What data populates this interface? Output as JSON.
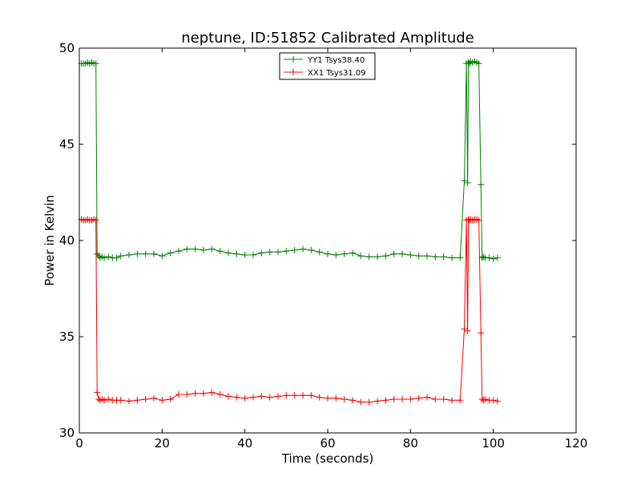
{
  "chart_data": {
    "type": "line",
    "title": "neptune, ID:51852 Calibrated Amplitude",
    "xlabel": "Time (seconds)",
    "ylabel": "Power in Kelvin",
    "xlim": [
      0,
      120
    ],
    "ylim": [
      30,
      50
    ],
    "xticks": [
      0,
      20,
      40,
      60,
      80,
      100,
      120
    ],
    "yticks": [
      30,
      35,
      40,
      45,
      50
    ],
    "grid": false,
    "legend_position": "top-center",
    "series": [
      {
        "name": "YY1 Tsys38.40",
        "color": "#008000",
        "marker": "+",
        "x": [
          0.5,
          1.0,
          1.5,
          2.0,
          2.5,
          3.0,
          3.5,
          4.0,
          4.3,
          4.7,
          5.0,
          5.5,
          6.0,
          7.0,
          8.0,
          9.0,
          10.0,
          12.0,
          14.0,
          16.0,
          18.0,
          20.0,
          22.0,
          24.0,
          26.0,
          28.0,
          30.0,
          32.0,
          34.0,
          36.0,
          38.0,
          40.0,
          42.0,
          44.0,
          46.0,
          48.0,
          50.0,
          52.0,
          54.0,
          56.0,
          58.0,
          60.0,
          62.0,
          64.0,
          66.0,
          68.0,
          70.0,
          72.0,
          74.0,
          76.0,
          78.0,
          80.0,
          82.0,
          84.0,
          86.0,
          88.0,
          90.0,
          92.0,
          93.0,
          93.5,
          93.8,
          94.0,
          94.2,
          94.5,
          95.0,
          95.5,
          96.0,
          96.5,
          97.0,
          97.3,
          97.6,
          98.0,
          99.0,
          100.0,
          101.0
        ],
        "y": [
          49.2,
          49.2,
          49.2,
          49.25,
          49.2,
          49.25,
          49.2,
          49.2,
          39.3,
          39.2,
          39.1,
          39.15,
          39.1,
          39.15,
          39.1,
          39.1,
          39.2,
          39.25,
          39.3,
          39.3,
          39.3,
          39.2,
          39.35,
          39.45,
          39.55,
          39.55,
          39.5,
          39.55,
          39.45,
          39.35,
          39.3,
          39.25,
          39.25,
          39.35,
          39.4,
          39.4,
          39.45,
          39.5,
          39.55,
          39.5,
          39.4,
          39.3,
          39.25,
          39.3,
          39.35,
          39.2,
          39.15,
          39.15,
          39.2,
          39.3,
          39.3,
          39.25,
          39.2,
          39.2,
          39.15,
          39.15,
          39.1,
          39.1,
          43.1,
          49.2,
          43.0,
          49.25,
          49.2,
          49.3,
          49.25,
          49.3,
          49.25,
          49.2,
          42.9,
          39.1,
          39.15,
          39.1,
          39.1,
          39.05,
          39.1
        ]
      },
      {
        "name": "XX1 Tsys31.09",
        "color": "#ff0000",
        "marker": "+",
        "x": [
          0.5,
          1.0,
          1.5,
          2.0,
          2.5,
          3.0,
          3.5,
          4.0,
          4.3,
          4.7,
          5.0,
          5.5,
          6.0,
          7.0,
          8.0,
          9.0,
          10.0,
          12.0,
          14.0,
          16.0,
          18.0,
          20.0,
          22.0,
          24.0,
          26.0,
          28.0,
          30.0,
          32.0,
          34.0,
          36.0,
          38.0,
          40.0,
          42.0,
          44.0,
          46.0,
          48.0,
          50.0,
          52.0,
          54.0,
          56.0,
          58.0,
          60.0,
          62.0,
          64.0,
          66.0,
          68.0,
          70.0,
          72.0,
          74.0,
          76.0,
          78.0,
          80.0,
          82.0,
          84.0,
          86.0,
          88.0,
          90.0,
          92.0,
          93.0,
          93.5,
          93.8,
          94.0,
          94.2,
          94.5,
          95.0,
          95.5,
          96.0,
          96.5,
          97.0,
          97.3,
          97.6,
          98.0,
          99.0,
          100.0,
          101.0
        ],
        "y": [
          41.1,
          41.05,
          41.05,
          41.1,
          41.05,
          41.05,
          41.1,
          41.05,
          32.1,
          31.75,
          31.7,
          31.75,
          31.7,
          31.75,
          31.7,
          31.7,
          31.7,
          31.65,
          31.7,
          31.75,
          31.8,
          31.7,
          31.75,
          32.0,
          32.0,
          32.05,
          32.05,
          32.1,
          32.0,
          31.9,
          31.85,
          31.8,
          31.85,
          31.9,
          31.85,
          31.9,
          31.95,
          31.95,
          31.95,
          31.95,
          31.85,
          31.8,
          31.8,
          31.75,
          31.7,
          31.6,
          31.6,
          31.65,
          31.7,
          31.75,
          31.75,
          31.75,
          31.8,
          31.85,
          31.75,
          31.75,
          31.7,
          31.7,
          35.4,
          41.05,
          35.3,
          41.1,
          41.05,
          41.1,
          41.05,
          41.1,
          41.1,
          41.05,
          35.2,
          31.75,
          31.7,
          31.75,
          31.7,
          31.7,
          31.65
        ]
      }
    ]
  }
}
